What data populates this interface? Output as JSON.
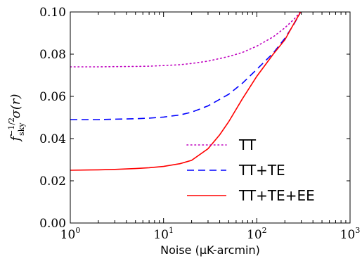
{
  "chart_data": {
    "type": "line",
    "xscale": "log",
    "xlim": [
      1,
      1000
    ],
    "ylim": [
      0.0,
      0.1
    ],
    "xlabel": "Noise (μK-arcmin)",
    "ylabel": "f_sky^{-1/2} σ(r)",
    "ylabel_parts": {
      "f": "f",
      "sub": "sky",
      "sup": "−1/2",
      "sigma": "σ(r)"
    },
    "yticks": [
      "0.00",
      "0.02",
      "0.04",
      "0.06",
      "0.08",
      "0.10"
    ],
    "yticks_values": [
      0.0,
      0.02,
      0.04,
      0.06,
      0.08,
      0.1
    ],
    "xticks": [
      {
        "value": 1,
        "base": "10",
        "exp": "0"
      },
      {
        "value": 10,
        "base": "10",
        "exp": "1"
      },
      {
        "value": 100,
        "base": "10",
        "exp": "2"
      },
      {
        "value": 1000,
        "base": "10",
        "exp": "3"
      }
    ],
    "legend_position": "lower-right",
    "series": [
      {
        "name": "TT",
        "color": "#bf00bf",
        "style": "dotted",
        "x": [
          1,
          2,
          3,
          5,
          7,
          10,
          15,
          20,
          30,
          50,
          70,
          100,
          150,
          200,
          250,
          300
        ],
        "y": [
          0.074,
          0.074,
          0.0741,
          0.0742,
          0.0743,
          0.0746,
          0.075,
          0.0756,
          0.0767,
          0.0789,
          0.0808,
          0.0838,
          0.0882,
          0.0925,
          0.0965,
          0.1005
        ]
      },
      {
        "name": "TT+TE",
        "color": "#0000ff",
        "style": "dashed",
        "x": [
          1,
          2,
          3,
          5,
          7,
          10,
          15,
          20,
          30,
          50,
          70,
          100,
          150,
          200,
          250,
          300
        ],
        "y": [
          0.049,
          0.049,
          0.0492,
          0.0494,
          0.0497,
          0.0502,
          0.0512,
          0.0525,
          0.0555,
          0.061,
          0.0662,
          0.0728,
          0.0805,
          0.0875,
          0.0942,
          0.1005
        ]
      },
      {
        "name": "TT+TE+EE",
        "color": "#ff0000",
        "style": "solid",
        "x": [
          1,
          2,
          3,
          5,
          7,
          10,
          15,
          20,
          30,
          40,
          50,
          70,
          100,
          150,
          200,
          250,
          300
        ],
        "y": [
          0.025,
          0.0252,
          0.0254,
          0.0258,
          0.0262,
          0.0268,
          0.0281,
          0.0297,
          0.0352,
          0.0418,
          0.048,
          0.0588,
          0.0695,
          0.08,
          0.0868,
          0.0945,
          0.1005
        ]
      }
    ]
  }
}
